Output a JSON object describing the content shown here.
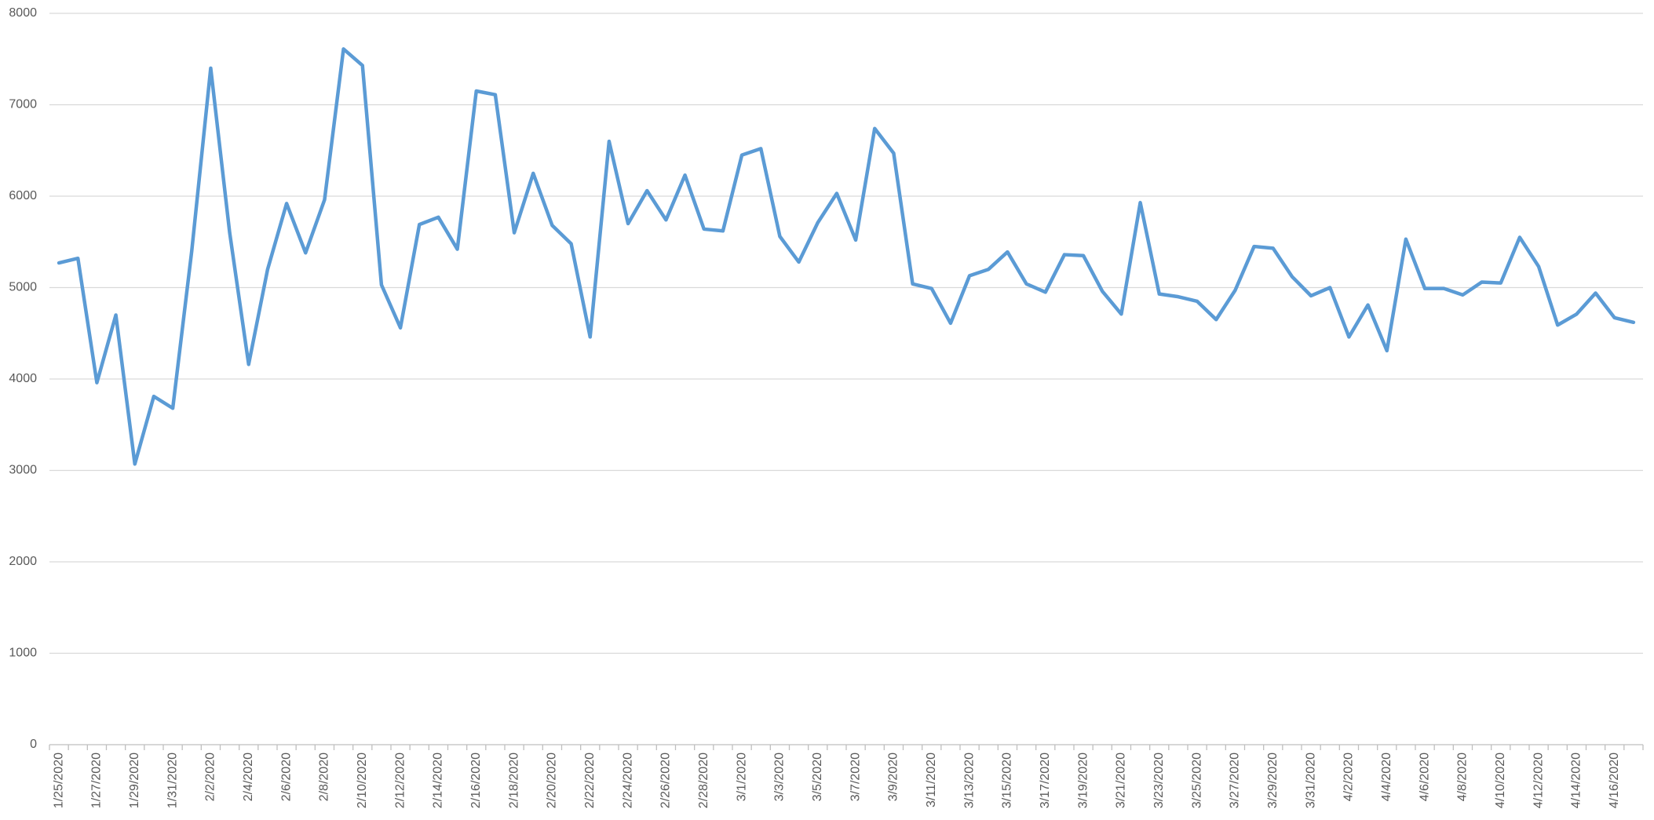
{
  "chart_data": {
    "type": "line",
    "categories": [
      "1/25/2020",
      null,
      "1/27/2020",
      null,
      "1/29/2020",
      null,
      "1/31/2020",
      null,
      "2/2/2020",
      null,
      "2/4/2020",
      null,
      "2/6/2020",
      null,
      "2/8/2020",
      null,
      "2/10/2020",
      null,
      "2/12/2020",
      null,
      "2/14/2020",
      null,
      "2/16/2020",
      null,
      "2/18/2020",
      null,
      "2/20/2020",
      null,
      "2/22/2020",
      null,
      "2/24/2020",
      null,
      "2/26/2020",
      null,
      "2/28/2020",
      null,
      "3/1/2020",
      null,
      "3/3/2020",
      null,
      "3/5/2020",
      null,
      "3/7/2020",
      null,
      "3/9/2020",
      null,
      "3/11/2020",
      null,
      "3/13/2020",
      null,
      "3/15/2020",
      null,
      "3/17/2020",
      null,
      "3/19/2020",
      null,
      "3/21/2020",
      null,
      "3/23/2020",
      null,
      "3/25/2020",
      null,
      "3/27/2020",
      null,
      "3/29/2020",
      null,
      "3/31/2020",
      null,
      "4/2/2020",
      null,
      "4/4/2020",
      null,
      "4/6/2020",
      null,
      "4/8/2020",
      null,
      "4/10/2020",
      null,
      "4/12/2020",
      null,
      "4/14/2020",
      null,
      "4/16/2020",
      null
    ],
    "values": [
      5270,
      5320,
      3960,
      4700,
      3070,
      3810,
      3680,
      5400,
      7400,
      5600,
      4160,
      5200,
      5920,
      5380,
      5960,
      7610,
      7430,
      5030,
      4560,
      5690,
      5770,
      5420,
      7150,
      7110,
      5600,
      6250,
      5680,
      5480,
      4460,
      6600,
      5700,
      6060,
      5740,
      6230,
      5640,
      5620,
      6450,
      6520,
      5560,
      5280,
      5710,
      6030,
      5520,
      6740,
      6470,
      5040,
      4990,
      4610,
      5130,
      5200,
      5390,
      5040,
      4950,
      5360,
      5350,
      4960,
      4710,
      5930,
      4930,
      4900,
      4850,
      4650,
      4970,
      5450,
      5430,
      5120,
      4910,
      5000,
      4460,
      4810,
      4310,
      5530,
      4990,
      4990,
      4920,
      5060,
      5050,
      5550,
      5230,
      4590,
      4710,
      4940,
      4670,
      4620
    ],
    "color": "#5b9bd5",
    "ylim": [
      0,
      8000
    ],
    "yticks": [
      0,
      1000,
      2000,
      3000,
      4000,
      5000,
      6000,
      7000,
      8000
    ],
    "grid": true
  }
}
